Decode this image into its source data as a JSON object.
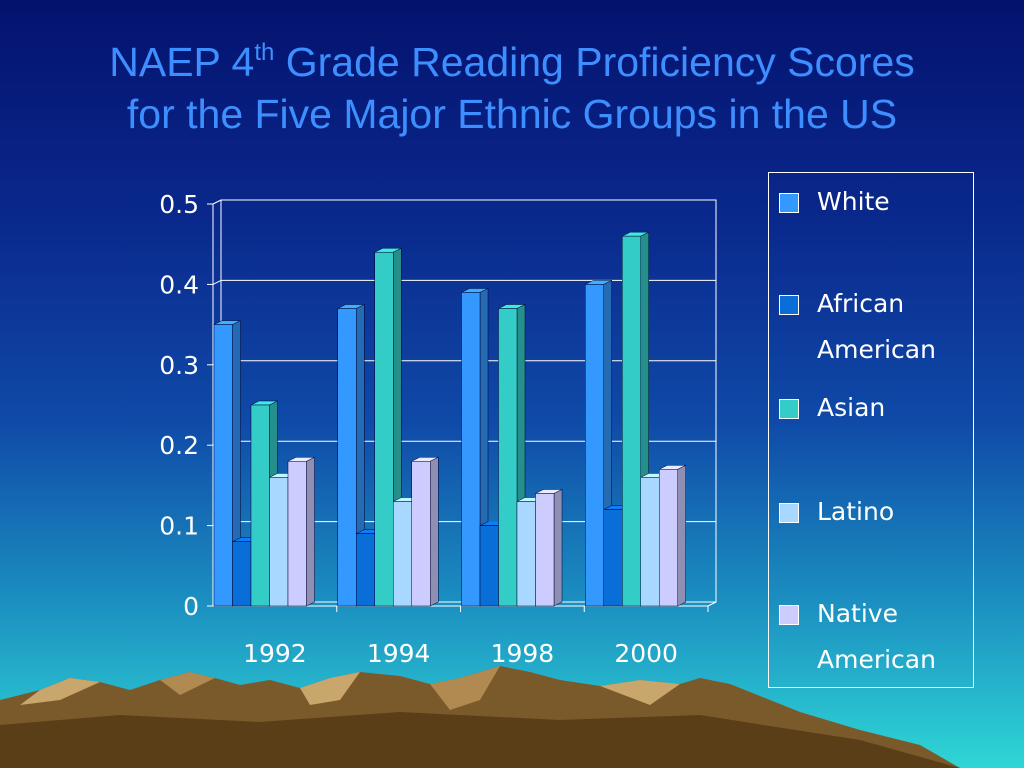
{
  "title": {
    "line1_prefix": "NAEP 4",
    "line1_sup": "th",
    "line1_suffix": " Grade Reading Proficiency Scores",
    "line2": "for the Five Major Ethnic Groups in the US"
  },
  "colors": {
    "White": "#3399ff",
    "African American": "#0a6ed8",
    "Asian": "#33ccc6",
    "Latino": "#a8d8ff",
    "Native American": "#ccccff"
  },
  "legend": {
    "items": [
      {
        "lines": [
          "White"
        ]
      },
      {
        "lines": [
          "African",
          "American"
        ]
      },
      {
        "lines": [
          "Asian"
        ]
      },
      {
        "lines": [
          "Latino"
        ]
      },
      {
        "lines": [
          "Native",
          "American"
        ]
      }
    ]
  },
  "chart_data": {
    "type": "bar",
    "title": "NAEP 4th Grade Reading Proficiency Scores for the Five Major Ethnic Groups in the US",
    "categories": [
      "1992",
      "1994",
      "1998",
      "2000"
    ],
    "series": [
      {
        "name": "White",
        "values": [
          0.35,
          0.37,
          0.39,
          0.4
        ]
      },
      {
        "name": "African American",
        "values": [
          0.08,
          0.09,
          0.1,
          0.12
        ]
      },
      {
        "name": "Asian",
        "values": [
          0.25,
          0.44,
          0.37,
          0.46
        ]
      },
      {
        "name": "Latino",
        "values": [
          0.16,
          0.13,
          0.13,
          0.16
        ]
      },
      {
        "name": "Native American",
        "values": [
          0.18,
          0.18,
          0.14,
          0.17
        ]
      }
    ],
    "yticks": [
      "0",
      "0.1",
      "0.2",
      "0.3",
      "0.4",
      "0.5"
    ],
    "ylim": [
      0,
      0.5
    ],
    "grid": true,
    "legend_position": "right",
    "style": "3d-bars"
  }
}
